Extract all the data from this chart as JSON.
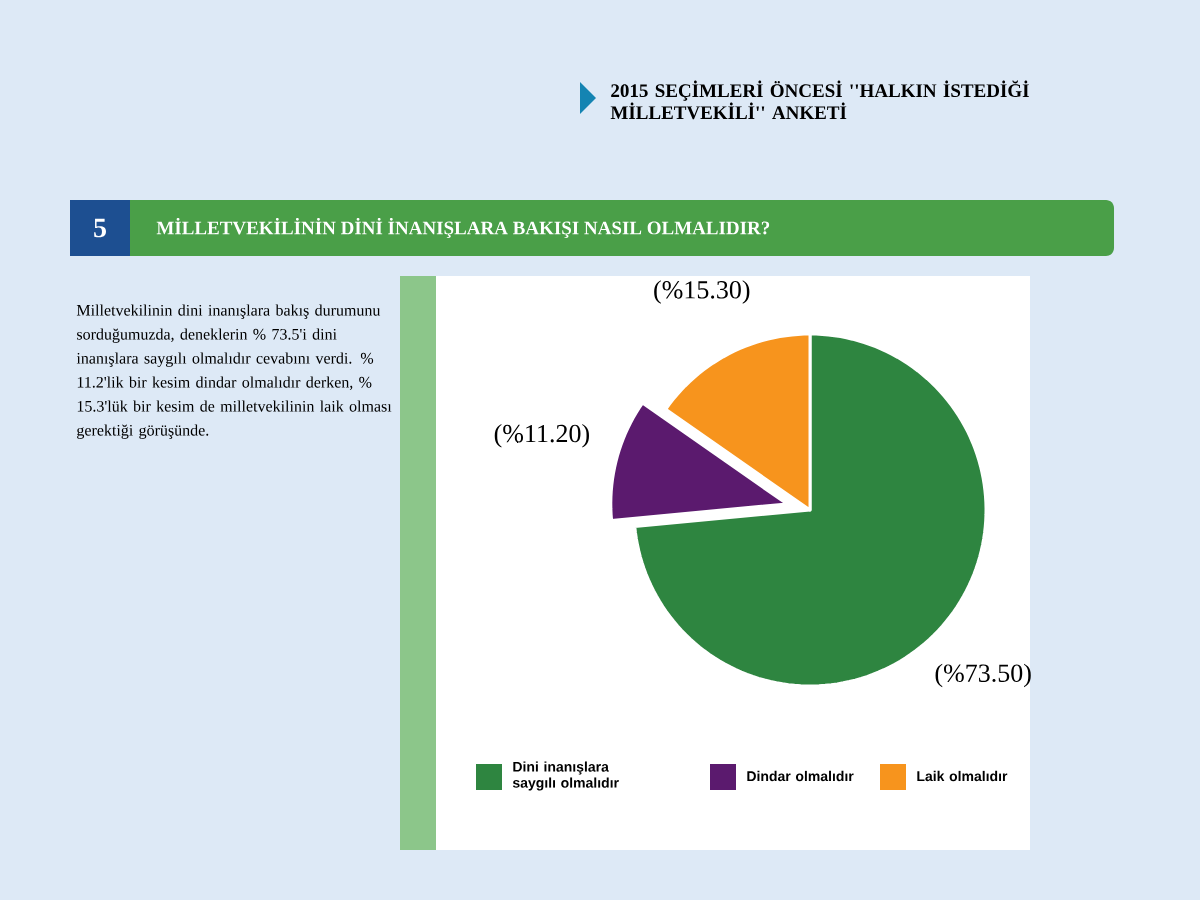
{
  "chart_data": {
    "type": "pie",
    "title": "2015 SEÇİMLERİ ÖNCESİ ''HALKIN İSTEDİĞİ MİLLETVEKİLİ'' ANKETİ",
    "subtitle": "MİLLETVEKİLİNİN DİNİ İNANIŞLARA BAKIŞI NASIL OLMALIDIR?",
    "annotations": [
      "5",
      "Milletvekilinin dini inanışlara bakış durumunu sorduğumuzda, deneklerin % 73.5'i dini inanışlara saygılı olmalıdır cevabını verdi. % 11.2'lik bir kesim dindar olmalıdır derken, % 15.3'lük bir kesim de milletvekilinin laik olması gerektiği görüşünde."
    ],
    "categories": [
      "Dini inanışlara saygılı olmalıdır",
      "Dindar olmalıdır",
      "Laik olmalıdır"
    ],
    "values": [
      73.5,
      11.2,
      15.3
    ],
    "colors": [
      "#2e8540",
      "#5b1a6e",
      "#f7941d"
    ],
    "value_labels": [
      "(%73.50)",
      "(%11.20)",
      "(%15.30)"
    ],
    "legend": "bottom"
  }
}
